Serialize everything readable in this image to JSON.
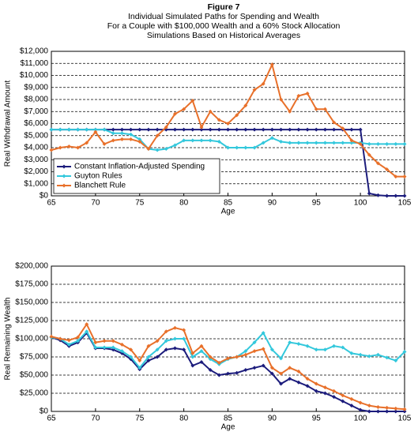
{
  "header": {
    "title": "Figure 7",
    "subtitle": [
      "Individual Simulated Paths for Spending and Wealth",
      "For a Couple with $100,000 Wealth and a 60% Stock Allocation",
      "Simulations Based on Historical Averages"
    ]
  },
  "chart_data": [
    {
      "type": "line",
      "y_label": "Real Withdrawal Amount",
      "x_label": "Age",
      "grid": true,
      "legend": "lower left",
      "x": [
        65,
        66,
        67,
        68,
        69,
        70,
        71,
        72,
        73,
        74,
        75,
        76,
        77,
        78,
        79,
        80,
        81,
        82,
        83,
        84,
        85,
        86,
        87,
        88,
        89,
        90,
        91,
        92,
        93,
        94,
        95,
        96,
        97,
        98,
        99,
        100,
        101,
        102,
        103,
        104,
        105
      ],
      "xlim": [
        65,
        105
      ],
      "xticks": [
        65,
        70,
        75,
        80,
        85,
        90,
        95,
        100,
        105
      ],
      "ylim": [
        0,
        12000
      ],
      "yticks": [
        {
          "value": 0,
          "label": "$0"
        },
        {
          "value": 1000,
          "label": "$1,000"
        },
        {
          "value": 2000,
          "label": "$2,000"
        },
        {
          "value": 3000,
          "label": "$3,000"
        },
        {
          "value": 4000,
          "label": "$4,000"
        },
        {
          "value": 5000,
          "label": "$5,000"
        },
        {
          "value": 6000,
          "label": "$6,000"
        },
        {
          "value": 7000,
          "label": "$7,000"
        },
        {
          "value": 8000,
          "label": "$8,000"
        },
        {
          "value": 9000,
          "label": "$9,000"
        },
        {
          "value": 10000,
          "label": "$10,000"
        },
        {
          "value": 11000,
          "label": "$11,000"
        },
        {
          "value": 12000,
          "label": "$12,000"
        }
      ],
      "series": [
        {
          "name": "Constant Inflation-Adjusted Spending",
          "color": "#1c1c7c",
          "values": [
            5500,
            5500,
            5500,
            5500,
            5500,
            5500,
            5500,
            5500,
            5500,
            5500,
            5500,
            5500,
            5500,
            5500,
            5500,
            5500,
            5500,
            5500,
            5500,
            5500,
            5500,
            5500,
            5500,
            5500,
            5500,
            5500,
            5500,
            5500,
            5500,
            5500,
            5500,
            5500,
            5500,
            5500,
            5500,
            5500,
            200,
            50,
            0,
            0,
            0
          ]
        },
        {
          "name": "Guyton Rules",
          "color": "#33c8dc",
          "values": [
            5500,
            5500,
            5500,
            5500,
            5500,
            5500,
            5500,
            5200,
            5200,
            5100,
            4700,
            3900,
            3800,
            3900,
            4200,
            4600,
            4600,
            4600,
            4600,
            4500,
            4000,
            4000,
            4000,
            4000,
            4400,
            4800,
            4500,
            4400,
            4400,
            4400,
            4400,
            4400,
            4400,
            4400,
            4400,
            4400,
            4300,
            4300,
            4300,
            4300,
            4300
          ]
        },
        {
          "name": "Blanchett Rule",
          "color": "#e8702a",
          "values": [
            3800,
            4000,
            4100,
            4000,
            4400,
            5300,
            4300,
            4600,
            4700,
            4700,
            4500,
            3900,
            5000,
            5700,
            6800,
            7200,
            7900,
            5700,
            7000,
            6300,
            6000,
            6700,
            7500,
            8800,
            9300,
            10900,
            8000,
            7000,
            8300,
            8500,
            7200,
            7200,
            6100,
            5600,
            4600,
            4300,
            3400,
            2700,
            2200,
            1600,
            1600
          ]
        }
      ]
    },
    {
      "type": "line",
      "y_label": "Real Remaining Wealth",
      "x_label": "Age",
      "grid": true,
      "x": [
        65,
        66,
        67,
        68,
        69,
        70,
        71,
        72,
        73,
        74,
        75,
        76,
        77,
        78,
        79,
        80,
        81,
        82,
        83,
        84,
        85,
        86,
        87,
        88,
        89,
        90,
        91,
        92,
        93,
        94,
        95,
        96,
        97,
        98,
        99,
        100,
        101,
        102,
        103,
        104,
        105
      ],
      "xlim": [
        65,
        105
      ],
      "xticks": [
        65,
        70,
        75,
        80,
        85,
        90,
        95,
        100,
        105
      ],
      "ylim": [
        0,
        200000
      ],
      "yticks": [
        {
          "value": 0,
          "label": "$0"
        },
        {
          "value": 25000,
          "label": "$25,000"
        },
        {
          "value": 50000,
          "label": "$50,000"
        },
        {
          "value": 75000,
          "label": "$75,000"
        },
        {
          "value": 100000,
          "label": "$100,000"
        },
        {
          "value": 125000,
          "label": "$125,000"
        },
        {
          "value": 150000,
          "label": "$150,000"
        },
        {
          "value": 175000,
          "label": "$175,000"
        },
        {
          "value": 200000,
          "label": "$200,000"
        }
      ],
      "series": [
        {
          "name": "Constant Inflation-Adjusted Spending",
          "color": "#1c1c7c",
          "values": [
            102000,
            98000,
            90000,
            95000,
            108000,
            87000,
            87000,
            85000,
            80000,
            72000,
            58000,
            70000,
            75000,
            85000,
            87000,
            85000,
            63000,
            68000,
            57000,
            50000,
            52000,
            53000,
            57000,
            60000,
            63000,
            52000,
            38000,
            45000,
            40000,
            35000,
            28000,
            25000,
            20000,
            14000,
            8000,
            2000,
            0,
            0,
            0,
            0,
            0
          ]
        },
        {
          "name": "Guyton Rules",
          "color": "#33c8dc",
          "values": [
            102000,
            100000,
            92000,
            97000,
            110000,
            88000,
            88000,
            88000,
            83000,
            75000,
            60000,
            75000,
            85000,
            97000,
            100000,
            100000,
            75000,
            83000,
            72000,
            65000,
            72000,
            75000,
            83000,
            95000,
            108000,
            85000,
            73000,
            95000,
            93000,
            90000,
            85000,
            85000,
            90000,
            88000,
            80000,
            78000,
            76000,
            78000,
            74000,
            70000,
            82000
          ]
        },
        {
          "name": "Blanchett Rule",
          "color": "#e8702a",
          "values": [
            103000,
            100000,
            98000,
            102000,
            120000,
            95000,
            97000,
            97000,
            92000,
            85000,
            70000,
            90000,
            97000,
            110000,
            115000,
            112000,
            80000,
            90000,
            75000,
            67000,
            73000,
            75000,
            78000,
            83000,
            86000,
            60000,
            52000,
            60000,
            55000,
            45000,
            38000,
            33000,
            28000,
            22000,
            17000,
            12000,
            8000,
            6000,
            5000,
            4000,
            3000
          ]
        }
      ]
    }
  ]
}
